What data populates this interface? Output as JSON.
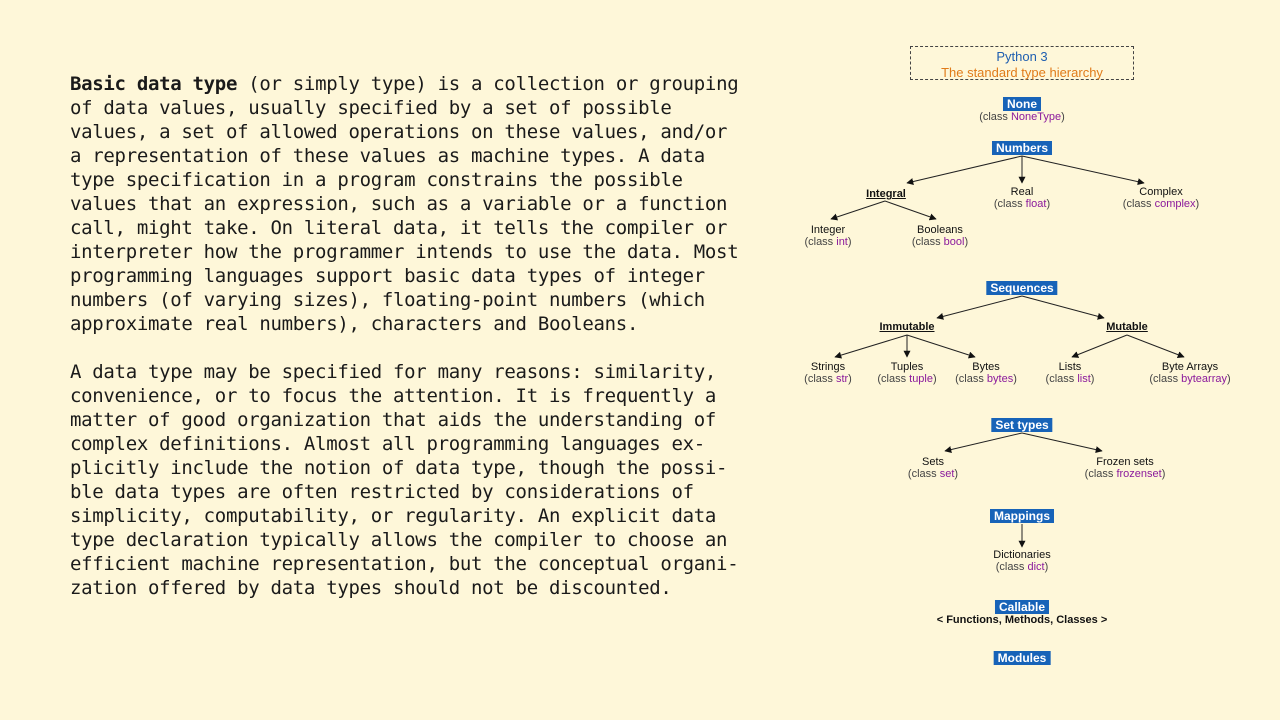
{
  "text": {
    "p1_term": "Basic data type",
    "p1_rest": " (or simply type) is a collection or grouping\nof data values, usually specified by a set of possible\nvalues, a set of allowed operations on these values, and/or\na representation of these values as machine types. A data\ntype specification in a program constrains the possible\nvalues that an expression, such as a variable or a function\ncall, might take. On literal data, it tells the compiler or\ninterpreter how the programmer intends to use the data. Most\nprogramming languages support basic data types of integer\nnumbers (of varying sizes), floating-point numbers (which\napproximate real numbers), characters and Booleans.",
    "p2": "A data type may be specified for many reasons: similarity,\nconvenience, or to focus the attention. It is frequently a\nmatter of good organization that aids the understanding of\ncomplex definitions. Almost all programming languages ex-\nplicitly include the notion of data type, though the possi-\nble data types are often restricted by considerations of\nsimplicity, computability, or regularity. An explicit data\ntype declaration typically allows the compiler to choose an\nefficient machine representation, but the conceptual organi-\nzation offered by data types should not be discounted."
  },
  "diagram": {
    "title": "Python 3",
    "subtitle": "The standard type hierarchy",
    "class_word": "class",
    "categories": {
      "none": "None",
      "numbers": "Numbers",
      "sequences": "Sequences",
      "set_types": "Set types",
      "mappings": "Mappings",
      "callable": "Callable",
      "modules": "Modules"
    },
    "subgroups": {
      "integral": "Integral",
      "immutable": "Immutable",
      "mutable": "Mutable"
    },
    "nodes": {
      "none": {
        "cls": "NoneType"
      },
      "real": {
        "name": "Real",
        "cls": "float"
      },
      "complex": {
        "name": "Complex",
        "cls": "complex"
      },
      "integer": {
        "name": "Integer",
        "cls": "int"
      },
      "booleans": {
        "name": "Booleans",
        "cls": "bool"
      },
      "strings": {
        "name": "Strings",
        "cls": "str"
      },
      "tuples": {
        "name": "Tuples",
        "cls": "tuple"
      },
      "bytes": {
        "name": "Bytes",
        "cls": "bytes"
      },
      "lists": {
        "name": "Lists",
        "cls": "list"
      },
      "bytearrays": {
        "name": "Byte Arrays",
        "cls": "bytearray"
      },
      "sets": {
        "name": "Sets",
        "cls": "set"
      },
      "frozensets": {
        "name": "Frozen sets",
        "cls": "frozenset"
      },
      "dictionaries": {
        "name": "Dictionaries",
        "cls": "dict"
      }
    },
    "callable_note": "< Functions, Methods, Classes >"
  },
  "colors": {
    "background": "#fef7d9",
    "category_fill": "#1763b8",
    "class_name": "#8b1a9c",
    "title_blue": "#1f5fb0",
    "title_orange": "#e07b1a"
  }
}
